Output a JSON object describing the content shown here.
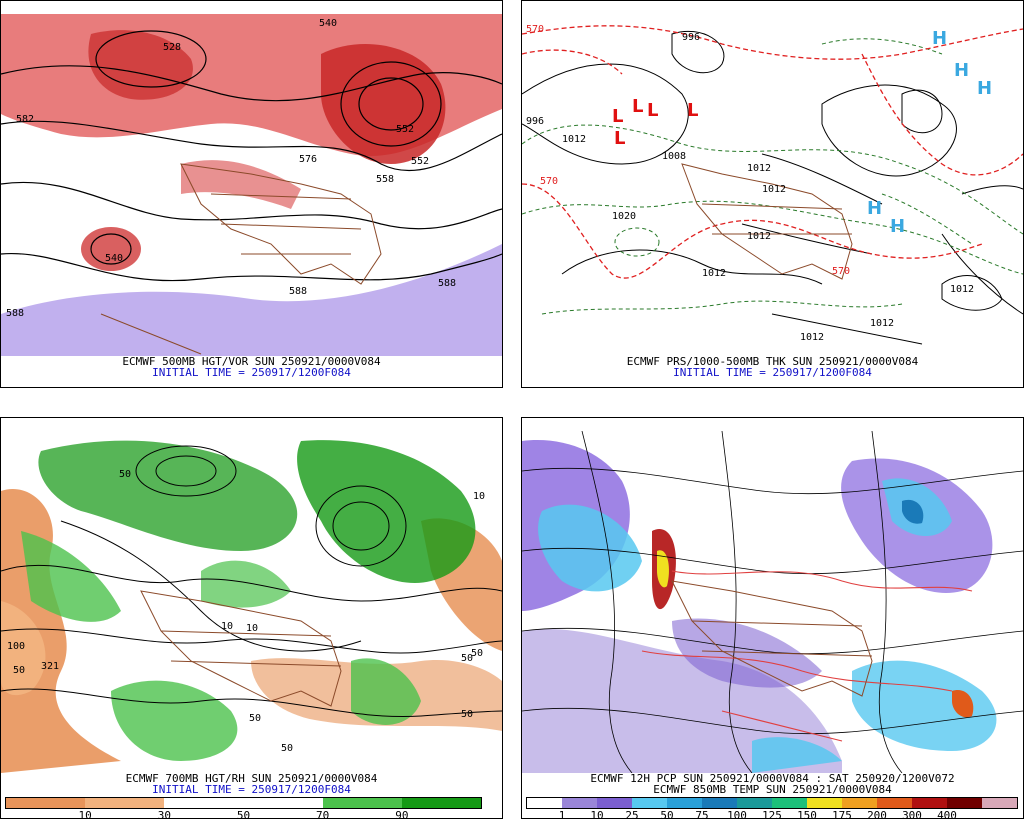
{
  "panels": [
    {
      "id": "p500",
      "caption_line1": "ECMWF 500MB HGT/VOR SUN 250921/0000V084",
      "caption_line2": "INITIAL TIME = 250917/1200F084",
      "contour_labels": [
        "540",
        "528",
        "552",
        "552",
        "576",
        "582",
        "588",
        "588",
        "588",
        "558",
        "540"
      ]
    },
    {
      "id": "pprs",
      "caption_line1": "ECMWF PRS/1000-500MB THK SUN 250921/0000V084",
      "caption_line2": "INITIAL TIME = 250917/1200F084",
      "contour_labels": [
        "996",
        "996",
        "1012",
        "1008",
        "1020",
        "1012",
        "1012",
        "1012",
        "1012",
        "1012",
        "1012",
        "1012",
        "570",
        "570",
        "570"
      ],
      "high_symbol": "H",
      "low_symbol": "L"
    },
    {
      "id": "p700",
      "caption_line1": "ECMWF 700MB HGT/RH SUN 250921/0000V084",
      "caption_line2": "INITIAL TIME = 250917/1200F084",
      "contour_labels": [
        "50",
        "50",
        "10",
        "10",
        "50",
        "50",
        "50",
        "50",
        "50",
        "100",
        "321",
        "10"
      ],
      "colorbar": {
        "colors": [
          "#e8945a",
          "#f2b27e",
          "#ffffff",
          "#ffffff",
          "#4cc24c",
          "#159a15"
        ],
        "ticks": [
          "10",
          "30",
          "50",
          "70",
          "90"
        ]
      }
    },
    {
      "id": "ppcp",
      "caption_line1": "ECMWF 12H PCP SUN 250921/0000V084 : SAT 250920/1200V072",
      "caption_line2": "ECMWF 850MB TEMP SUN 250921/0000V084",
      "colorbar": {
        "colors": [
          "#ffffff",
          "#9a86d8",
          "#7b5fd0",
          "#57c8f0",
          "#2aa0d8",
          "#1a7ab8",
          "#1b9a9a",
          "#1cc07a",
          "#f0e020",
          "#f0a020",
          "#e05a1a",
          "#b01010",
          "#700000",
          "#d8a8b8"
        ],
        "ticks": [
          "1",
          "10",
          "25",
          "50",
          "75",
          "100",
          "125",
          "150",
          "175",
          "200",
          "300",
          "400"
        ]
      }
    }
  ]
}
